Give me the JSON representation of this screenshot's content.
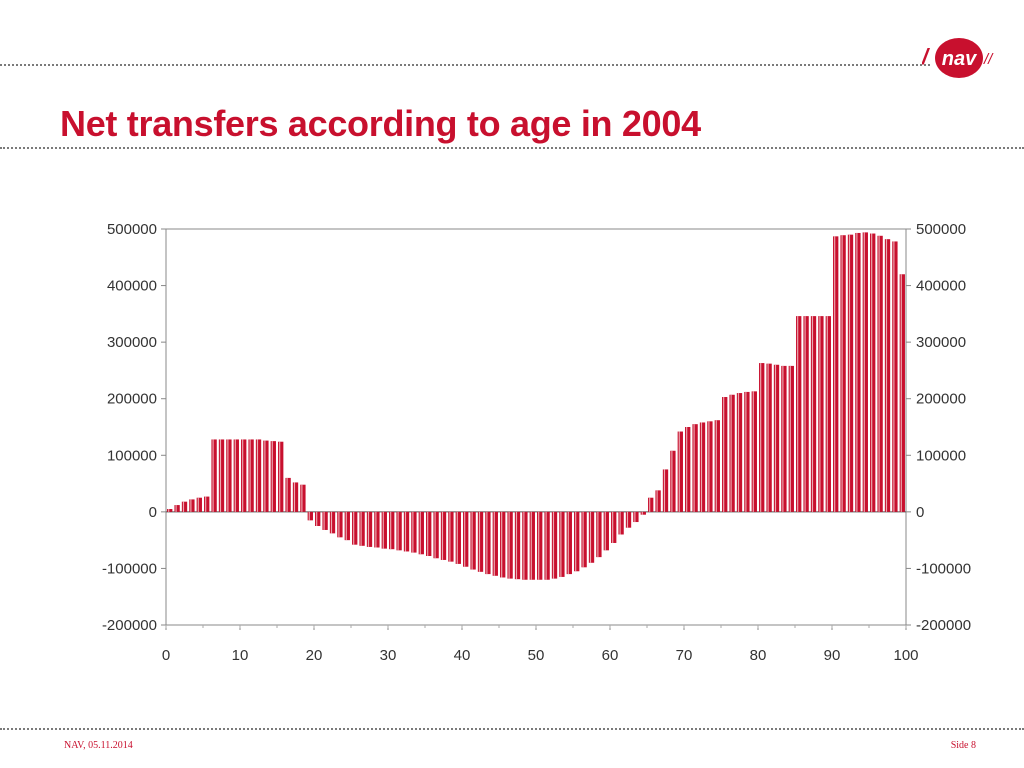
{
  "slide": {
    "title": "Net transfers according to age in 2004",
    "footer_left": "NAV, 05.11.2014",
    "footer_right": "Side 8"
  },
  "logo": {
    "text": "nav",
    "slashes_left": "/",
    "slashes_right": "//",
    "color": "#c8102e"
  },
  "colors": {
    "accent": "#c8102e",
    "bar": "#c8102e",
    "bar_highlight": "#f2c4c8",
    "axis": "#888888",
    "dotline": "#7a7a7a"
  },
  "chart_data": {
    "type": "bar",
    "title": "",
    "xlabel": "",
    "ylabel": "",
    "xlim": [
      0,
      100
    ],
    "ylim": [
      -200000,
      500000
    ],
    "xticks": [
      "0",
      "10",
      "20",
      "30",
      "40",
      "50",
      "60",
      "70",
      "80",
      "90",
      "100"
    ],
    "yticks_left": [
      "500000",
      "400000",
      "300000",
      "200000",
      "100000",
      "0",
      "-100000",
      "-200000"
    ],
    "yticks_right": [
      "500000",
      "400000",
      "300000",
      "200000",
      "100000",
      "0",
      "-100000",
      "-200000"
    ],
    "grid": false,
    "legend": "none",
    "categories": [
      0,
      1,
      2,
      3,
      4,
      5,
      6,
      7,
      8,
      9,
      10,
      11,
      12,
      13,
      14,
      15,
      16,
      17,
      18,
      19,
      20,
      21,
      22,
      23,
      24,
      25,
      26,
      27,
      28,
      29,
      30,
      31,
      32,
      33,
      34,
      35,
      36,
      37,
      38,
      39,
      40,
      41,
      42,
      43,
      44,
      45,
      46,
      47,
      48,
      49,
      50,
      51,
      52,
      53,
      54,
      55,
      56,
      57,
      58,
      59,
      60,
      61,
      62,
      63,
      64,
      65,
      66,
      67,
      68,
      69,
      70,
      71,
      72,
      73,
      74,
      75,
      76,
      77,
      78,
      79,
      80,
      81,
      82,
      83,
      84,
      85,
      86,
      87,
      88,
      89,
      90,
      91,
      92,
      93,
      94,
      95,
      96,
      97,
      98,
      99
    ],
    "values": [
      5000,
      12000,
      18000,
      22000,
      25000,
      27000,
      128000,
      128000,
      128000,
      128000,
      128000,
      128000,
      128000,
      126000,
      125000,
      124000,
      60000,
      52000,
      48000,
      -15000,
      -25000,
      -32000,
      -38000,
      -45000,
      -50000,
      -58000,
      -60000,
      -62000,
      -63000,
      -65000,
      -66000,
      -68000,
      -70000,
      -72000,
      -75000,
      -78000,
      -82000,
      -85000,
      -88000,
      -92000,
      -97000,
      -102000,
      -106000,
      -110000,
      -113000,
      -116000,
      -118000,
      -119000,
      -120000,
      -120000,
      -120000,
      -120000,
      -118000,
      -115000,
      -110000,
      -105000,
      -98000,
      -90000,
      -80000,
      -68000,
      -55000,
      -40000,
      -28000,
      -18000,
      -5000,
      25000,
      38000,
      75000,
      108000,
      142000,
      150000,
      155000,
      158000,
      160000,
      162000,
      203000,
      207000,
      210000,
      212000,
      213000,
      263000,
      262000,
      260000,
      258000,
      258000,
      346000,
      346000,
      346000,
      346000,
      346000,
      487000,
      489000,
      490000,
      493000,
      494000,
      492000,
      488000,
      482000,
      478000,
      420000
    ]
  }
}
